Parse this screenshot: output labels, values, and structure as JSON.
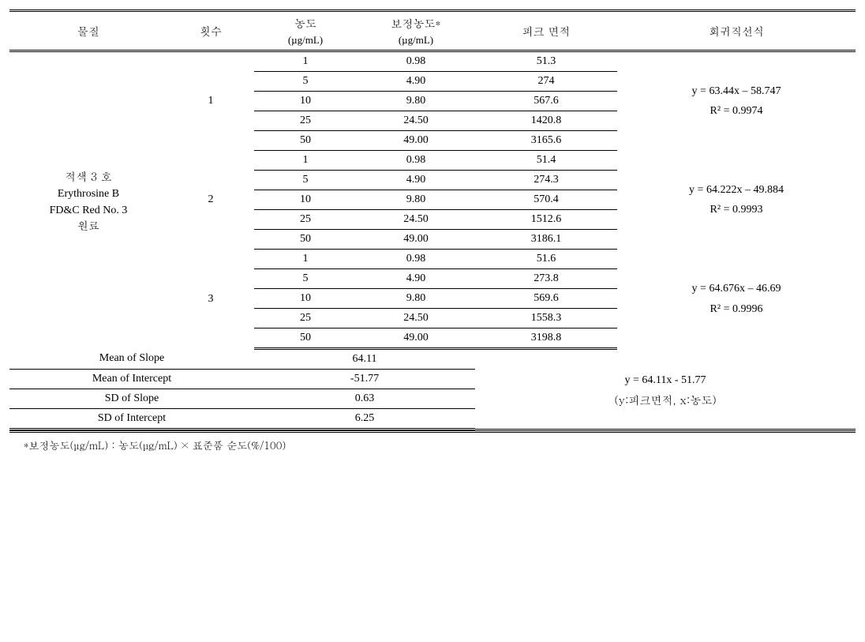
{
  "columns": {
    "material": "물질",
    "trial": "횟수",
    "conc": "농도",
    "conc_unit": "(µg/mL)",
    "corr_conc": "보정농도*",
    "corr_conc_unit": "(µg/mL)",
    "peak_area": "피크 면적",
    "regression": "회귀직선식"
  },
  "material": {
    "line1": "적색 3 호",
    "line2": "Erythrosine B",
    "line3": "FD&C Red No. 3",
    "line4": "원료"
  },
  "groups": [
    {
      "trial": "1",
      "eqn_line1": "y = 63.44x – 58.747",
      "eqn_line2": "R² = 0.9974",
      "rows": [
        {
          "conc": "1",
          "corr": "0.98",
          "peak": "51.3"
        },
        {
          "conc": "5",
          "corr": "4.90",
          "peak": "274"
        },
        {
          "conc": "10",
          "corr": "9.80",
          "peak": "567.6"
        },
        {
          "conc": "25",
          "corr": "24.50",
          "peak": "1420.8"
        },
        {
          "conc": "50",
          "corr": "49.00",
          "peak": "3165.6"
        }
      ]
    },
    {
      "trial": "2",
      "eqn_line1": "y = 64.222x – 49.884",
      "eqn_line2": "R² = 0.9993",
      "rows": [
        {
          "conc": "1",
          "corr": "0.98",
          "peak": "51.4"
        },
        {
          "conc": "5",
          "corr": "4.90",
          "peak": "274.3"
        },
        {
          "conc": "10",
          "corr": "9.80",
          "peak": "570.4"
        },
        {
          "conc": "25",
          "corr": "24.50",
          "peak": "1512.6"
        },
        {
          "conc": "50",
          "corr": "49.00",
          "peak": "3186.1"
        }
      ]
    },
    {
      "trial": "3",
      "eqn_line1": "y = 64.676x – 46.69",
      "eqn_line2": "R² = 0.9996",
      "rows": [
        {
          "conc": "1",
          "corr": "0.98",
          "peak": "51.6"
        },
        {
          "conc": "5",
          "corr": "4.90",
          "peak": "273.8"
        },
        {
          "conc": "10",
          "corr": "9.80",
          "peak": "569.6"
        },
        {
          "conc": "25",
          "corr": "24.50",
          "peak": "1558.3"
        },
        {
          "conc": "50",
          "corr": "49.00",
          "peak": "3198.8"
        }
      ]
    }
  ],
  "summary": {
    "rows": [
      {
        "label": "Mean of Slope",
        "value": "64.11"
      },
      {
        "label": "Mean of Intercept",
        "value": "-51.77"
      },
      {
        "label": "SD of Slope",
        "value": "0.63"
      },
      {
        "label": "SD of Intercept",
        "value": "6.25"
      }
    ],
    "eqn_line1": "y = 64.11x - 51.77",
    "eqn_line2": "(y:피크면적, x:농도)"
  },
  "footnote": "*보정농도(µg/mL) : 농도(µg/mL) × 표준품 순도(%/100)",
  "widths": {
    "material": 200,
    "trial": 110,
    "conc": 130,
    "corr": 150,
    "peak": 180,
    "regr": 302
  }
}
